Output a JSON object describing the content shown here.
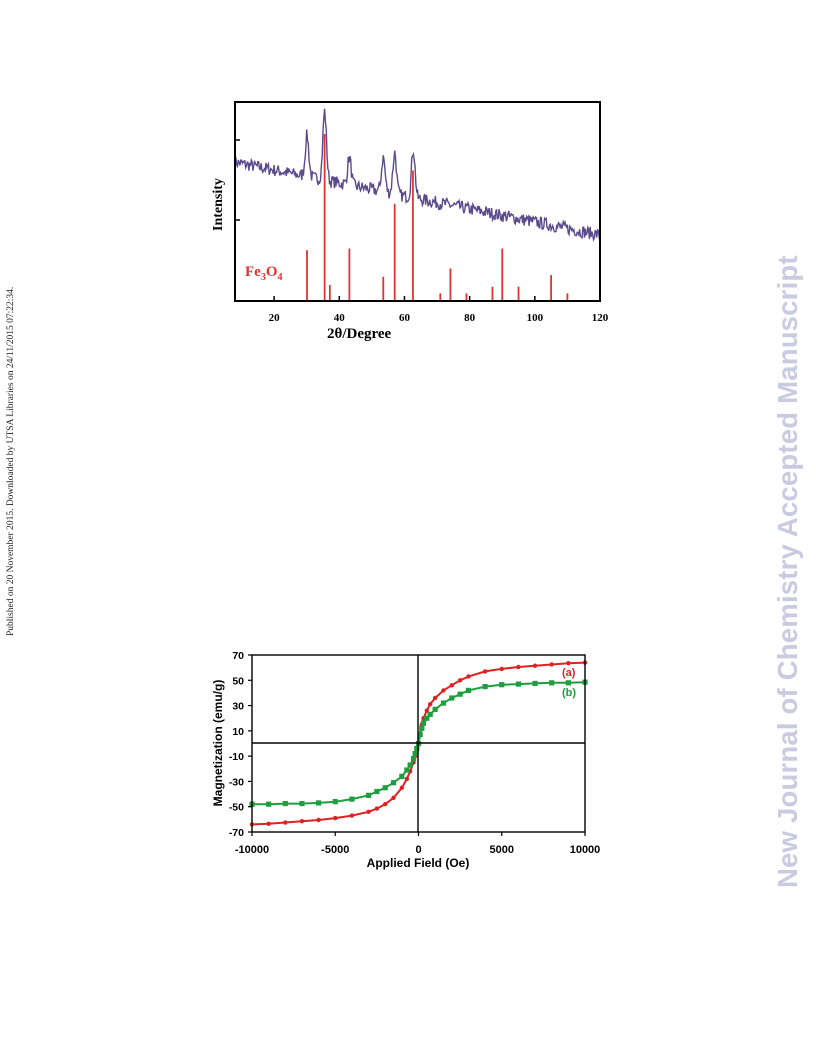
{
  "side_note": "Published on 20 November 2015. Downloaded by UTSA Libraries on 24/11/2015 07:22:34.",
  "watermark": "New Journal of Chemistry Accepted Manuscript",
  "colors": {
    "xrd_trace": "#5b4a8c",
    "reference": "#e23333",
    "curve_a": "#dd2222",
    "curve_b": "#1e9e3e",
    "axis": "#000000"
  },
  "chart_data": [
    {
      "type": "line",
      "xlabel": "2θ/Degree",
      "ylabel": "Intensity",
      "xlim": [
        8,
        120
      ],
      "xticks": [
        20,
        40,
        60,
        80,
        100,
        120
      ],
      "reference_label": "Fe",
      "reference_label_sub1": "3",
      "reference_label_mid": "O",
      "reference_label_sub2": "4",
      "pattern_peaks": [
        [
          30.1,
          0.6
        ],
        [
          35.5,
          1.0
        ],
        [
          43.1,
          0.4
        ],
        [
          53.5,
          0.5
        ],
        [
          57.0,
          0.6
        ],
        [
          62.7,
          0.7
        ]
      ],
      "pattern_baseline": {
        "start": 0.78,
        "end": 0.38
      },
      "reference_lines": [
        {
          "x": 30.1,
          "h": 0.3
        },
        {
          "x": 35.5,
          "h": 1.0
        },
        {
          "x": 37.1,
          "h": 0.09
        },
        {
          "x": 43.1,
          "h": 0.31
        },
        {
          "x": 53.5,
          "h": 0.14
        },
        {
          "x": 57.0,
          "h": 0.58
        },
        {
          "x": 62.6,
          "h": 0.78
        },
        {
          "x": 71.0,
          "h": 0.04
        },
        {
          "x": 74.1,
          "h": 0.19
        },
        {
          "x": 79.0,
          "h": 0.04
        },
        {
          "x": 87.0,
          "h": 0.08
        },
        {
          "x": 90.0,
          "h": 0.31
        },
        {
          "x": 95.0,
          "h": 0.08
        },
        {
          "x": 105.0,
          "h": 0.15
        },
        {
          "x": 110.0,
          "h": 0.04
        }
      ]
    },
    {
      "type": "line",
      "xlabel": "Applied Field (Oe)",
      "ylabel": "Magnetization (emu/g)",
      "xlim": [
        -10000,
        10000
      ],
      "ylim": [
        -70,
        70
      ],
      "xticks": [
        -10000,
        -5000,
        0,
        5000,
        10000
      ],
      "yticks": [
        70,
        50,
        30,
        10,
        -10,
        -30,
        -50,
        -70
      ],
      "series": [
        {
          "name": "(a)",
          "x": [
            -10000,
            -9000,
            -8000,
            -7000,
            -6000,
            -5000,
            -4000,
            -3000,
            -2500,
            -2000,
            -1500,
            -1000,
            -700,
            -500,
            -300,
            -200,
            -100,
            0,
            100,
            200,
            300,
            500,
            700,
            1000,
            1500,
            2000,
            2500,
            3000,
            4000,
            5000,
            6000,
            7000,
            8000,
            9000,
            10000
          ],
          "y": [
            -64,
            -63.5,
            -62.5,
            -61.5,
            -60.5,
            -59,
            -57,
            -54,
            -51.5,
            -48,
            -43,
            -35,
            -28,
            -22,
            -15,
            -10,
            -5,
            0,
            8,
            15,
            20,
            26,
            31,
            36,
            42,
            46,
            50,
            53,
            57,
            59,
            60.5,
            61.5,
            62.5,
            63.5,
            64
          ]
        },
        {
          "name": "(b)",
          "x": [
            -10000,
            -9000,
            -8000,
            -7000,
            -6000,
            -5000,
            -4000,
            -3000,
            -2500,
            -2000,
            -1500,
            -1000,
            -700,
            -500,
            -300,
            -200,
            -100,
            0,
            100,
            200,
            300,
            500,
            700,
            1000,
            1500,
            2000,
            2500,
            3000,
            4000,
            5000,
            6000,
            7000,
            8000,
            9000,
            10000
          ],
          "y": [
            -48,
            -48,
            -47.5,
            -47.5,
            -47,
            -46,
            -44,
            -41,
            -38,
            -35,
            -31,
            -26,
            -21,
            -17,
            -12,
            -8,
            -4,
            0,
            7,
            12,
            16,
            20,
            23,
            27,
            32,
            36,
            39,
            42,
            45,
            46.5,
            47,
            47.5,
            48,
            48,
            48.5
          ]
        }
      ]
    }
  ]
}
